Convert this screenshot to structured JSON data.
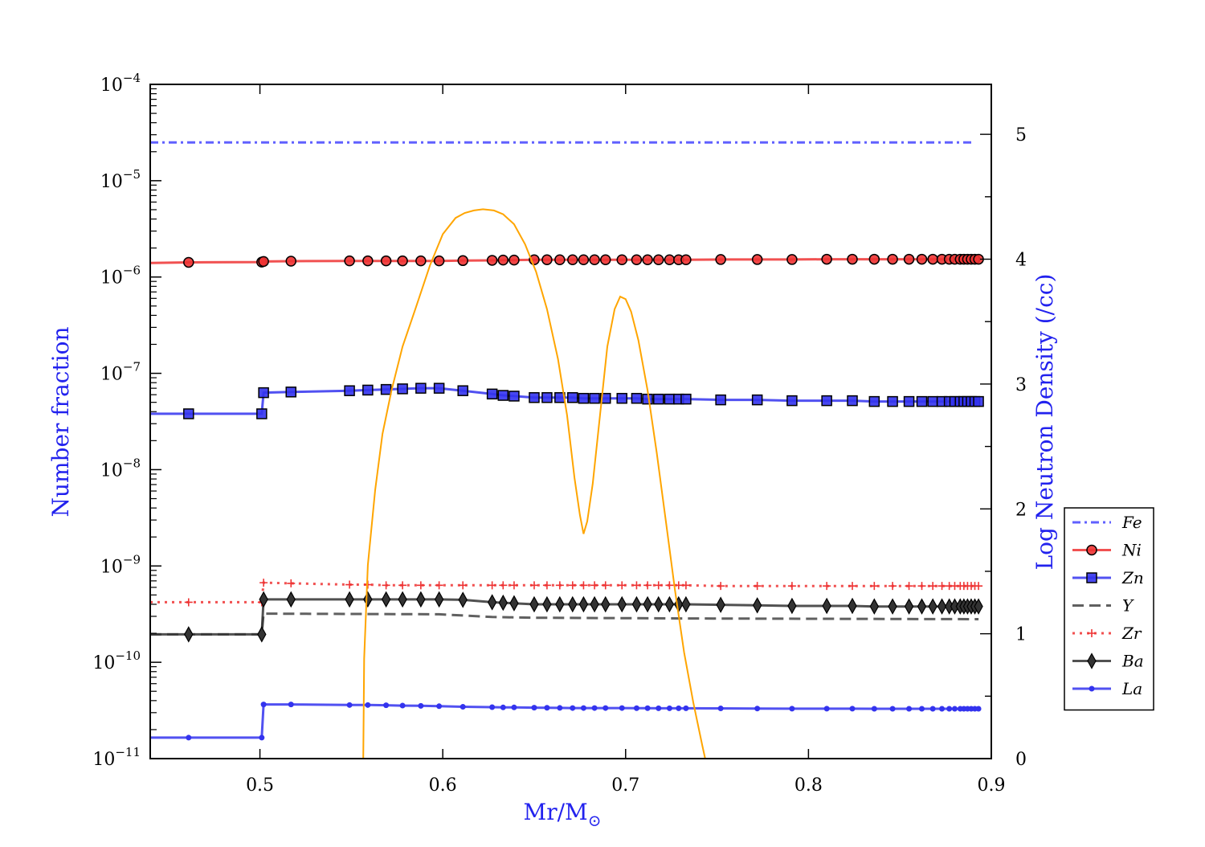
{
  "chart_data": {
    "type": "line",
    "xlabel": "Mr/M",
    "xlabel_sub": "⊙",
    "ylabel": "Number fraction",
    "y2label": "Log Neutron Density (/cc)",
    "xlim": [
      0.44,
      0.9
    ],
    "ylim": [
      1e-11,
      0.0001
    ],
    "yscale": "log",
    "y2lim": [
      0,
      5.4
    ],
    "grid": false,
    "legend_position": "right",
    "x_ticks": [
      "0.5",
      "0.6",
      "0.7",
      "0.8",
      "0.9"
    ],
    "y_ticks": [
      {
        "base": "10",
        "exp": "−4"
      },
      {
        "base": "10",
        "exp": "−5"
      },
      {
        "base": "10",
        "exp": "−6"
      },
      {
        "base": "10",
        "exp": "−7"
      },
      {
        "base": "10",
        "exp": "−8"
      },
      {
        "base": "10",
        "exp": "−9"
      },
      {
        "base": "10",
        "exp": "−10"
      },
      {
        "base": "10",
        "exp": "−11"
      }
    ],
    "y2_ticks": [
      "0",
      "1",
      "2",
      "3",
      "4",
      "5"
    ],
    "colors": {
      "blue": "#2222ee",
      "red": "#ee2222",
      "black": "#000000",
      "orange": "#ffa500"
    },
    "series": [
      {
        "name": "Fe",
        "style": "dashdot",
        "color": "#4444ff",
        "marker": "none",
        "x": [
          0.44,
          0.89
        ],
        "y": [
          2.5e-05,
          2.5e-05
        ]
      },
      {
        "name": "Ni",
        "style": "solid",
        "color": "#ee3333",
        "marker": "circle",
        "x": [
          0.44,
          0.461,
          0.501,
          0.502,
          0.517,
          0.549,
          0.559,
          0.569,
          0.578,
          0.588,
          0.598,
          0.611,
          0.627,
          0.633,
          0.639,
          0.65,
          0.657,
          0.664,
          0.671,
          0.677,
          0.683,
          0.689,
          0.698,
          0.706,
          0.712,
          0.718,
          0.724,
          0.729,
          0.733,
          0.752,
          0.772,
          0.791,
          0.81,
          0.824,
          0.836,
          0.846,
          0.855,
          0.862,
          0.868,
          0.873,
          0.877,
          0.88,
          0.883,
          0.885,
          0.887,
          0.889,
          0.891,
          0.893
        ],
        "y": [
          1.4e-06,
          1.42e-06,
          1.43e-06,
          1.45e-06,
          1.46e-06,
          1.47e-06,
          1.47e-06,
          1.47e-06,
          1.47e-06,
          1.47e-06,
          1.47e-06,
          1.48e-06,
          1.49e-06,
          1.5e-06,
          1.5e-06,
          1.51e-06,
          1.51e-06,
          1.51e-06,
          1.51e-06,
          1.51e-06,
          1.51e-06,
          1.51e-06,
          1.51e-06,
          1.51e-06,
          1.51e-06,
          1.51e-06,
          1.51e-06,
          1.51e-06,
          1.51e-06,
          1.52e-06,
          1.52e-06,
          1.52e-06,
          1.53e-06,
          1.53e-06,
          1.53e-06,
          1.53e-06,
          1.53e-06,
          1.53e-06,
          1.53e-06,
          1.53e-06,
          1.53e-06,
          1.53e-06,
          1.53e-06,
          1.53e-06,
          1.53e-06,
          1.53e-06,
          1.53e-06,
          1.53e-06
        ]
      },
      {
        "name": "Zn",
        "style": "solid",
        "color": "#3333ee",
        "marker": "square",
        "x": [
          0.44,
          0.461,
          0.501,
          0.502,
          0.517,
          0.549,
          0.559,
          0.569,
          0.578,
          0.588,
          0.598,
          0.611,
          0.627,
          0.633,
          0.639,
          0.65,
          0.657,
          0.664,
          0.671,
          0.677,
          0.683,
          0.689,
          0.698,
          0.706,
          0.712,
          0.718,
          0.724,
          0.729,
          0.733,
          0.752,
          0.772,
          0.791,
          0.81,
          0.824,
          0.836,
          0.846,
          0.855,
          0.862,
          0.868,
          0.873,
          0.877,
          0.88,
          0.883,
          0.885,
          0.887,
          0.889,
          0.891,
          0.893
        ],
        "y": [
          3.8e-08,
          3.8e-08,
          3.8e-08,
          6.3e-08,
          6.4e-08,
          6.6e-08,
          6.7e-08,
          6.8e-08,
          6.9e-08,
          7e-08,
          7e-08,
          6.6e-08,
          6.1e-08,
          5.9e-08,
          5.8e-08,
          5.6e-08,
          5.6e-08,
          5.6e-08,
          5.6e-08,
          5.5e-08,
          5.5e-08,
          5.5e-08,
          5.5e-08,
          5.5e-08,
          5.4e-08,
          5.4e-08,
          5.4e-08,
          5.4e-08,
          5.4e-08,
          5.3e-08,
          5.3e-08,
          5.2e-08,
          5.2e-08,
          5.2e-08,
          5.1e-08,
          5.1e-08,
          5.1e-08,
          5.1e-08,
          5.1e-08,
          5.1e-08,
          5.1e-08,
          5.1e-08,
          5.1e-08,
          5.1e-08,
          5.1e-08,
          5.1e-08,
          5.1e-08,
          5.1e-08
        ]
      },
      {
        "name": "Y",
        "style": "dashed",
        "color": "#444444",
        "marker": "none",
        "x": [
          0.44,
          0.501,
          0.502,
          0.598,
          0.627,
          0.65,
          0.733,
          0.893
        ],
        "y": [
          1.95e-10,
          1.95e-10,
          3.2e-10,
          3.15e-10,
          2.95e-10,
          2.9e-10,
          2.85e-10,
          2.8e-10
        ]
      },
      {
        "name": "Zr",
        "style": "dotted",
        "color": "#ee3333",
        "marker": "plus",
        "x": [
          0.44,
          0.461,
          0.501,
          0.502,
          0.517,
          0.549,
          0.559,
          0.569,
          0.578,
          0.588,
          0.598,
          0.611,
          0.627,
          0.633,
          0.639,
          0.65,
          0.657,
          0.664,
          0.671,
          0.677,
          0.683,
          0.689,
          0.698,
          0.706,
          0.712,
          0.718,
          0.724,
          0.729,
          0.733,
          0.752,
          0.772,
          0.791,
          0.81,
          0.824,
          0.836,
          0.846,
          0.855,
          0.862,
          0.868,
          0.873,
          0.877,
          0.88,
          0.883,
          0.885,
          0.887,
          0.889,
          0.891,
          0.893
        ],
        "y": [
          4.2e-10,
          4.2e-10,
          4.2e-10,
          6.7e-10,
          6.6e-10,
          6.4e-10,
          6.4e-10,
          6.3e-10,
          6.3e-10,
          6.3e-10,
          6.3e-10,
          6.3e-10,
          6.3e-10,
          6.3e-10,
          6.3e-10,
          6.3e-10,
          6.3e-10,
          6.3e-10,
          6.3e-10,
          6.3e-10,
          6.3e-10,
          6.3e-10,
          6.3e-10,
          6.3e-10,
          6.3e-10,
          6.3e-10,
          6.3e-10,
          6.3e-10,
          6.3e-10,
          6.2e-10,
          6.2e-10,
          6.2e-10,
          6.2e-10,
          6.2e-10,
          6.2e-10,
          6.2e-10,
          6.2e-10,
          6.2e-10,
          6.2e-10,
          6.2e-10,
          6.2e-10,
          6.2e-10,
          6.2e-10,
          6.2e-10,
          6.2e-10,
          6.2e-10,
          6.2e-10,
          6.2e-10
        ]
      },
      {
        "name": "Ba",
        "style": "solid",
        "color": "#333333",
        "marker": "diamond",
        "x": [
          0.44,
          0.461,
          0.501,
          0.502,
          0.517,
          0.549,
          0.559,
          0.569,
          0.578,
          0.588,
          0.598,
          0.611,
          0.627,
          0.633,
          0.639,
          0.65,
          0.657,
          0.664,
          0.671,
          0.677,
          0.683,
          0.689,
          0.698,
          0.706,
          0.712,
          0.718,
          0.724,
          0.729,
          0.733,
          0.752,
          0.772,
          0.791,
          0.81,
          0.824,
          0.836,
          0.846,
          0.855,
          0.862,
          0.868,
          0.873,
          0.877,
          0.88,
          0.883,
          0.885,
          0.887,
          0.889,
          0.891,
          0.893
        ],
        "y": [
          1.95e-10,
          1.95e-10,
          1.95e-10,
          4.5e-10,
          4.5e-10,
          4.5e-10,
          4.5e-10,
          4.5e-10,
          4.5e-10,
          4.5e-10,
          4.5e-10,
          4.45e-10,
          4.2e-10,
          4.15e-10,
          4.1e-10,
          4e-10,
          4e-10,
          4e-10,
          4e-10,
          4e-10,
          4e-10,
          4e-10,
          4e-10,
          4e-10,
          4e-10,
          4e-10,
          4e-10,
          4e-10,
          4e-10,
          3.95e-10,
          3.9e-10,
          3.85e-10,
          3.85e-10,
          3.85e-10,
          3.8e-10,
          3.8e-10,
          3.8e-10,
          3.8e-10,
          3.8e-10,
          3.8e-10,
          3.8e-10,
          3.8e-10,
          3.8e-10,
          3.8e-10,
          3.8e-10,
          3.8e-10,
          3.8e-10,
          3.8e-10
        ]
      },
      {
        "name": "La",
        "style": "solid",
        "color": "#3333ee",
        "marker": "dot",
        "x": [
          0.44,
          0.461,
          0.501,
          0.502,
          0.517,
          0.549,
          0.559,
          0.569,
          0.578,
          0.588,
          0.598,
          0.611,
          0.627,
          0.633,
          0.639,
          0.65,
          0.657,
          0.664,
          0.671,
          0.677,
          0.683,
          0.689,
          0.698,
          0.706,
          0.712,
          0.718,
          0.724,
          0.729,
          0.733,
          0.752,
          0.772,
          0.791,
          0.81,
          0.824,
          0.836,
          0.846,
          0.855,
          0.862,
          0.868,
          0.873,
          0.877,
          0.88,
          0.883,
          0.885,
          0.887,
          0.889,
          0.891,
          0.893
        ],
        "y": [
          1.65e-11,
          1.65e-11,
          1.65e-11,
          3.65e-11,
          3.65e-11,
          3.6e-11,
          3.6e-11,
          3.58e-11,
          3.55e-11,
          3.53e-11,
          3.5e-11,
          3.45e-11,
          3.42e-11,
          3.4e-11,
          3.4e-11,
          3.38e-11,
          3.37e-11,
          3.36e-11,
          3.35e-11,
          3.35e-11,
          3.35e-11,
          3.35e-11,
          3.35e-11,
          3.34e-11,
          3.34e-11,
          3.33e-11,
          3.33e-11,
          3.33e-11,
          3.33e-11,
          3.32e-11,
          3.31e-11,
          3.3e-11,
          3.3e-11,
          3.3e-11,
          3.29e-11,
          3.29e-11,
          3.29e-11,
          3.29e-11,
          3.29e-11,
          3.29e-11,
          3.29e-11,
          3.29e-11,
          3.29e-11,
          3.29e-11,
          3.29e-11,
          3.29e-11,
          3.29e-11,
          3.29e-11
        ]
      },
      {
        "name": "Log Neutron Density",
        "axis": "right",
        "style": "solid",
        "color": "#ffa500",
        "marker": "none",
        "x": [
          0.5565,
          0.557,
          0.559,
          0.563,
          0.567,
          0.572,
          0.578,
          0.585,
          0.593,
          0.6,
          0.607,
          0.612,
          0.617,
          0.622,
          0.628,
          0.633,
          0.639,
          0.645,
          0.651,
          0.657,
          0.663,
          0.668,
          0.672,
          0.675,
          0.677,
          0.679,
          0.682,
          0.686,
          0.69,
          0.694,
          0.697,
          0.7,
          0.703,
          0.707,
          0.712,
          0.717,
          0.722,
          0.727,
          0.732,
          0.737,
          0.742,
          0.7435
        ],
        "y": [
          0.0,
          0.8,
          1.55,
          2.15,
          2.6,
          2.95,
          3.3,
          3.6,
          3.95,
          4.2,
          4.33,
          4.37,
          4.39,
          4.4,
          4.39,
          4.36,
          4.28,
          4.12,
          3.9,
          3.6,
          3.2,
          2.75,
          2.25,
          1.95,
          1.8,
          1.9,
          2.2,
          2.75,
          3.3,
          3.6,
          3.7,
          3.68,
          3.58,
          3.35,
          2.95,
          2.45,
          1.9,
          1.35,
          0.85,
          0.45,
          0.1,
          0.0
        ]
      }
    ]
  }
}
